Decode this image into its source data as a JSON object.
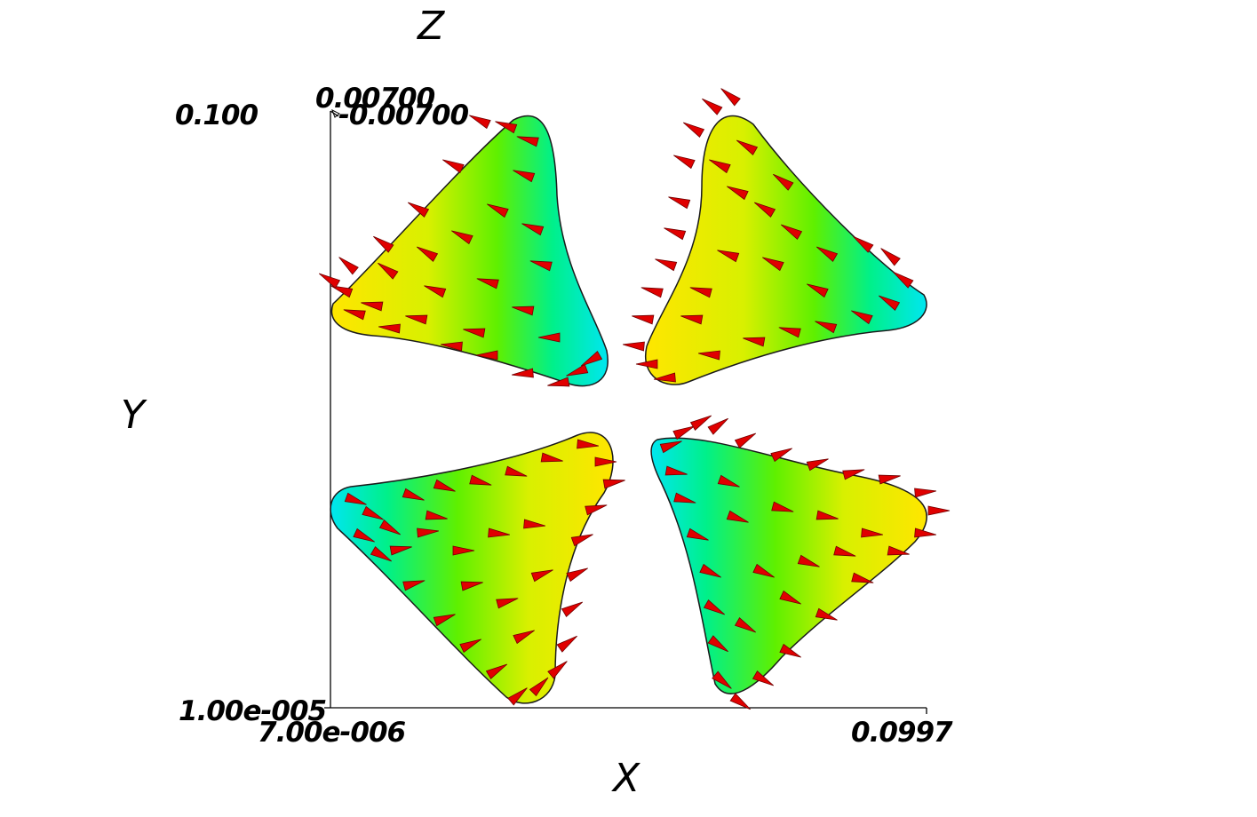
{
  "axes": {
    "x": {
      "title": "X",
      "min_label": "7.00e-006",
      "max_label": "0.0997"
    },
    "y": {
      "title": "Y",
      "min_label": "1.00e-005",
      "max_label": "0.100"
    },
    "z": {
      "title": "Z",
      "min_label": "-0.00700",
      "max_label": "0.00700"
    }
  },
  "colors": {
    "background": "#ffffff",
    "axis_line": "#000000",
    "arrow_fill": "#e00000",
    "arrow_edge": "#700000",
    "colormap": [
      "#00e6f0",
      "#00f08a",
      "#5ff000",
      "#d8f000",
      "#ffe600"
    ]
  },
  "scene": {
    "glyph": "cone",
    "field_type": "vector",
    "surface_count": 4,
    "surfaces": [
      {
        "name": "top-left",
        "hot_side": "left",
        "cold_side": "right"
      },
      {
        "name": "top-right",
        "hot_side": "left",
        "cold_side": "right"
      },
      {
        "name": "bottom-left",
        "hot_side": "right",
        "cold_side": "left"
      },
      {
        "name": "bottom-right",
        "hot_side": "right",
        "cold_side": "left"
      }
    ]
  }
}
